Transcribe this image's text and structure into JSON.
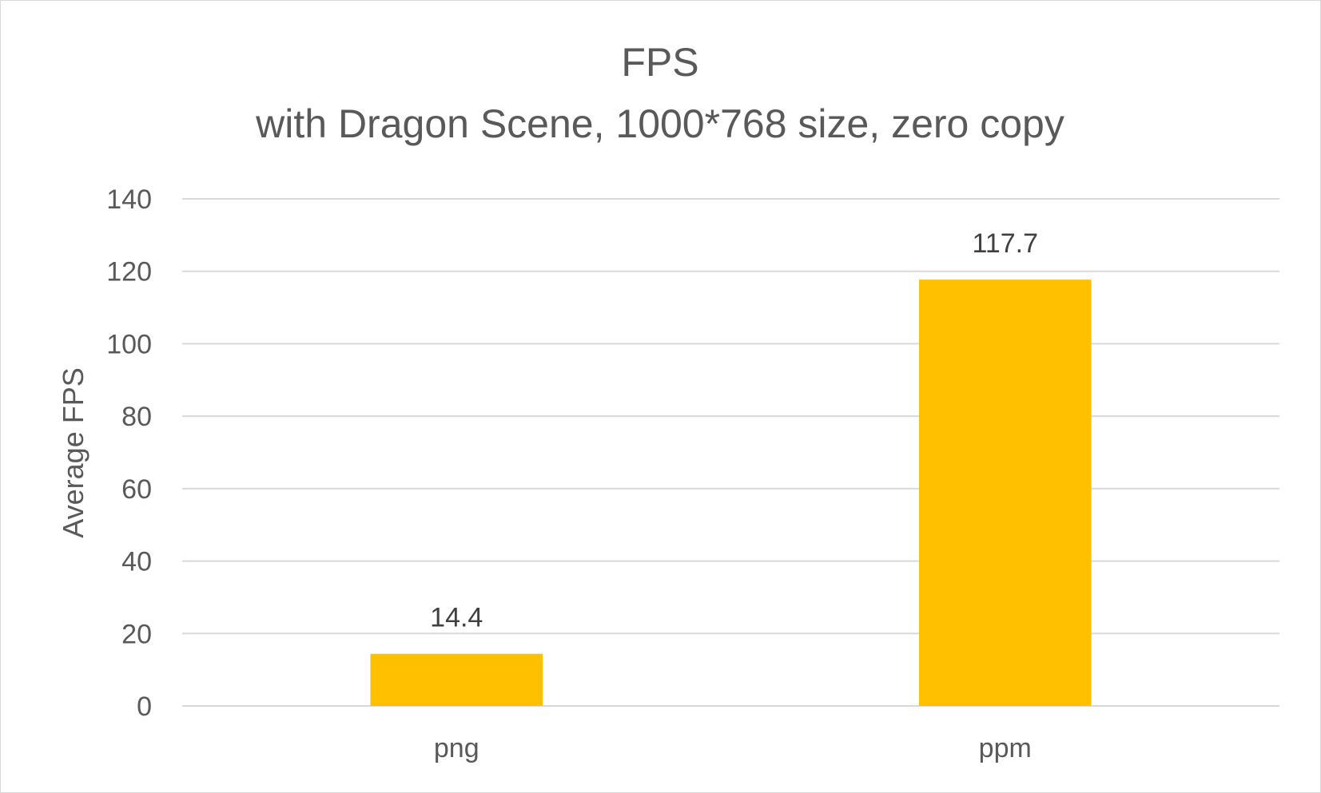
{
  "chart_data": {
    "type": "bar",
    "title": "FPS",
    "subtitle": "with Dragon Scene, 1000*768 size, zero copy",
    "xlabel": "",
    "ylabel": "Average FPS",
    "categories": [
      "png",
      "ppm"
    ],
    "values": [
      14.4,
      117.7
    ],
    "data_labels": [
      "14.4",
      "117.7"
    ],
    "ylim": [
      0,
      140
    ],
    "yticks": [
      0,
      20,
      40,
      60,
      80,
      100,
      120,
      140
    ],
    "grid": true,
    "legend": "none",
    "bar_color": "#FFC000",
    "grid_color": "#D9D9D9",
    "text_color": "#595959"
  }
}
